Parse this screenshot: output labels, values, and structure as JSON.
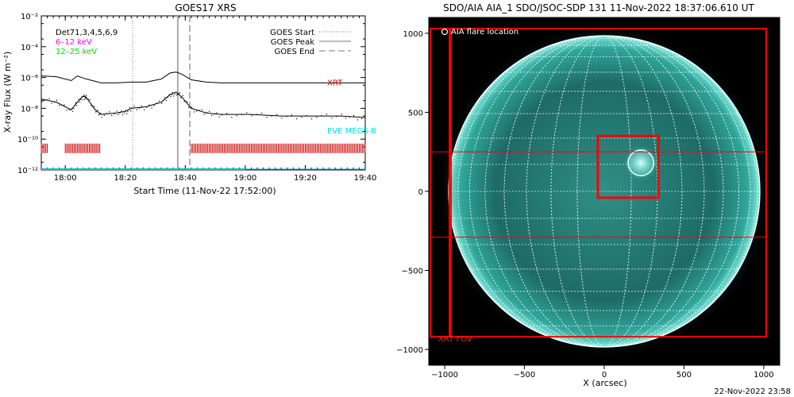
{
  "footer": {
    "timestamp": "22-Nov-2022 23:58"
  },
  "chart_data": [
    {
      "type": "line",
      "title": "GOES17 XRS",
      "xlabel": "Start Time (11-Nov-22 17:52:00)",
      "ylabel": "X-ray Flux (W m⁻²)",
      "y_scale": "log",
      "ylim_exp": [
        -12,
        -2
      ],
      "y_ticks": [
        {
          "exp": -2,
          "label": "10⁻²"
        },
        {
          "exp": -4,
          "label": "10⁻⁴"
        },
        {
          "exp": -6,
          "label": "10⁻⁶"
        },
        {
          "exp": -8,
          "label": "10⁻⁸"
        },
        {
          "exp": -10,
          "label": "10⁻¹⁰"
        },
        {
          "exp": -12,
          "label": "10⁻¹²"
        }
      ],
      "x_ticks": [
        {
          "min": 8,
          "label": "18:00"
        },
        {
          "min": 28,
          "label": "18:20"
        },
        {
          "min": 48,
          "label": "18:40"
        },
        {
          "min": 68,
          "label": "19:00"
        },
        {
          "min": 88,
          "label": "19:20"
        },
        {
          "min": 108,
          "label": "19:40"
        }
      ],
      "xlim_min": [
        0,
        108
      ],
      "legend_left": [
        {
          "text": "Det71,3,4,5,6,9",
          "color": "#000000"
        },
        {
          "text": "6–12 keV",
          "color": "#ff00ff"
        },
        {
          "text": "12–25 keV",
          "color": "#00e000"
        }
      ],
      "legend_right": [
        {
          "text": "GOES Start",
          "style": "dotted"
        },
        {
          "text": "GOES Peak",
          "style": "solid"
        },
        {
          "text": "GOES End",
          "style": "dashed"
        }
      ],
      "markers": {
        "goes_start_min": 30.5,
        "goes_peak_min": 45.5,
        "goes_end_min": 49.5
      },
      "series": [
        {
          "name": "XRT",
          "color": "#cc0000",
          "x": [
            0,
            5,
            10,
            12,
            15,
            20,
            25,
            30,
            35,
            40,
            43,
            45,
            47,
            50,
            55,
            60,
            70,
            80,
            90,
            100,
            108
          ],
          "y": [
            -5.9,
            -5.95,
            -6.2,
            -5.9,
            -6.1,
            -6.35,
            -6.35,
            -6.3,
            -6.3,
            -6.1,
            -5.7,
            -5.65,
            -5.8,
            -6.15,
            -6.3,
            -6.35,
            -6.35,
            -6.35,
            -6.35,
            -6.35,
            -6.35
          ]
        },
        {
          "name": "EVE MEGS-B",
          "color": "#00e0e0",
          "x": [
            0,
            5,
            10,
            12,
            14,
            15,
            18,
            20,
            25,
            28,
            30,
            35,
            40,
            43,
            45,
            47,
            50,
            55,
            60,
            70,
            80,
            90,
            100,
            108
          ],
          "y": [
            -7.4,
            -7.6,
            -8.1,
            -7.6,
            -7.2,
            -7.3,
            -8.1,
            -8.4,
            -8.3,
            -8.2,
            -8.0,
            -7.9,
            -7.6,
            -7.1,
            -6.95,
            -7.3,
            -8.0,
            -8.3,
            -8.4,
            -8.4,
            -8.5,
            -8.5,
            -8.5,
            -8.6
          ]
        }
      ],
      "flux_baseline_exp": -11.95,
      "rhessi_coverage_min": [
        [
          0,
          2
        ],
        [
          8,
          19.5
        ],
        [
          50,
          108
        ]
      ],
      "rhessi_level_exp": -10.6
    },
    {
      "type": "image",
      "title": "SDO/AIA AIA_1 SDO/JSOC-SDP 131 11-Nov-2022 18:37:06.610 UT",
      "xlabel": "X (arcsec)",
      "xlim": [
        -1100,
        1100
      ],
      "ylim": [
        -1100,
        1100
      ],
      "x_ticks": [
        -1000,
        -500,
        0,
        500,
        1000
      ],
      "y_ticks": [
        -1000,
        -500,
        0,
        500,
        1000
      ],
      "x_tick_labels": [
        "−1000",
        "−500",
        "0",
        "500",
        "1000"
      ],
      "y_tick_labels": [
        "−1000",
        "−500",
        "0",
        "500",
        "1000"
      ],
      "solar_radius_arcsec": 975,
      "flare_label": "AIA flare location",
      "flare_circle": {
        "x": 230,
        "y": 180,
        "r": 80
      },
      "fov_box": {
        "x0": -40,
        "x1": 340,
        "y0": -40,
        "y1": 350
      },
      "xrt_fov_label": "XRT FOV",
      "xrt_fov_lines_x": [
        -970,
        -960
      ],
      "xrt_fov_frame": {
        "x0": -1090,
        "x1": 1015,
        "y0": 1030,
        "y1": -920
      },
      "xrt_fov_hlines_y": [
        250,
        -290
      ]
    }
  ]
}
